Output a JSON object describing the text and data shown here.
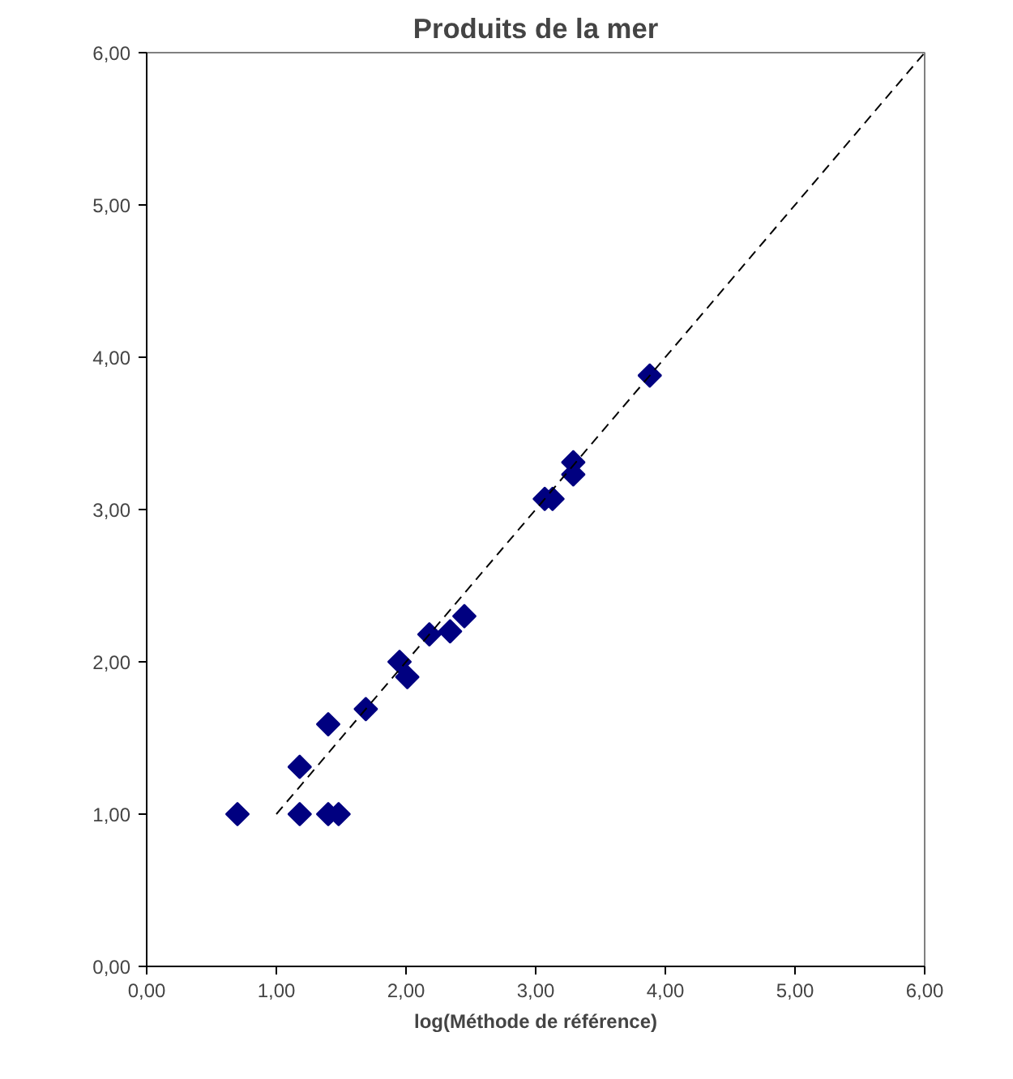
{
  "chart_data": {
    "type": "scatter",
    "title": "Produits de la mer",
    "xlabel": "log(Méthode de référence)",
    "xlim": [
      0,
      6
    ],
    "ylim": [
      0,
      6
    ],
    "xticks": [
      {
        "value": 0,
        "label": "0,00"
      },
      {
        "value": 1,
        "label": "1,00"
      },
      {
        "value": 2,
        "label": "2,00"
      },
      {
        "value": 3,
        "label": "3,00"
      },
      {
        "value": 4,
        "label": "4,00"
      },
      {
        "value": 5,
        "label": "5,00"
      },
      {
        "value": 6,
        "label": "6,00"
      }
    ],
    "yticks": [
      {
        "value": 0,
        "label": "0,00"
      },
      {
        "value": 1,
        "label": "1,00"
      },
      {
        "value": 2,
        "label": "2,00"
      },
      {
        "value": 3,
        "label": "3,00"
      },
      {
        "value": 4,
        "label": "4,00"
      },
      {
        "value": 5,
        "label": "5,00"
      },
      {
        "value": 6,
        "label": "6,00"
      }
    ],
    "series": [
      {
        "marker": "diamond",
        "color": "#000080",
        "x": [
          0.7,
          1.18,
          1.18,
          1.4,
          1.4,
          1.48,
          1.69,
          1.95,
          2.01,
          2.18,
          2.34,
          2.45,
          3.07,
          3.13,
          3.29,
          3.29,
          3.86,
          3.88
        ],
        "values": [
          1.0,
          1.31,
          1.0,
          1.59,
          1.0,
          1.0,
          1.69,
          2.0,
          1.9,
          2.18,
          2.2,
          2.3,
          3.07,
          3.07,
          3.31,
          3.23,
          null,
          3.88
        ]
      },
      {
        "type": "line",
        "line_style": "dashed",
        "color": "#000000",
        "x": [
          1,
          6
        ],
        "values": [
          1,
          6
        ]
      }
    ]
  }
}
